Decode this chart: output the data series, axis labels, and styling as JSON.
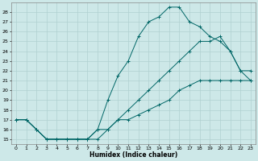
{
  "xlabel": "Humidex (Indice chaleur)",
  "background_color": "#cde8e8",
  "grid_color": "#b0d0d0",
  "line_color": "#006666",
  "xlim": [
    -0.5,
    23.5
  ],
  "ylim": [
    14.5,
    29.0
  ],
  "xticks": [
    0,
    1,
    2,
    3,
    4,
    5,
    6,
    7,
    8,
    9,
    10,
    11,
    12,
    13,
    14,
    15,
    16,
    17,
    18,
    19,
    20,
    21,
    22,
    23
  ],
  "yticks": [
    15,
    16,
    17,
    18,
    19,
    20,
    21,
    22,
    23,
    24,
    25,
    26,
    27,
    28
  ],
  "line_top_x": [
    0,
    1,
    2,
    3,
    4,
    5,
    6,
    7,
    8,
    9,
    10,
    11,
    12,
    13,
    14,
    15,
    16,
    17,
    18,
    19,
    20,
    21,
    22,
    23
  ],
  "line_top_y": [
    17,
    17,
    16,
    15,
    15,
    15,
    15,
    15,
    16,
    19,
    21.5,
    23,
    25.5,
    27,
    27.5,
    28.5,
    28.5,
    27,
    26.5,
    25.5,
    25,
    24,
    22,
    22
  ],
  "line_mid_x": [
    0,
    1,
    2,
    3,
    4,
    5,
    6,
    7,
    8,
    9,
    10,
    11,
    12,
    13,
    14,
    15,
    16,
    17,
    18,
    19,
    20,
    21,
    22,
    23
  ],
  "line_mid_y": [
    17,
    17,
    16,
    15,
    15,
    15,
    15,
    15,
    16,
    16,
    17,
    18,
    19,
    20,
    21,
    22,
    23,
    24,
    25,
    25,
    25.5,
    24,
    22,
    21
  ],
  "line_bot_x": [
    0,
    1,
    2,
    3,
    4,
    5,
    6,
    7,
    8,
    9,
    10,
    11,
    12,
    13,
    14,
    15,
    16,
    17,
    18,
    19,
    20,
    21,
    22,
    23
  ],
  "line_bot_y": [
    17,
    17,
    16,
    15,
    15,
    15,
    15,
    15,
    15,
    16,
    17,
    17,
    17.5,
    18,
    18.5,
    19,
    20,
    20.5,
    21,
    21,
    21,
    21,
    21,
    21
  ]
}
